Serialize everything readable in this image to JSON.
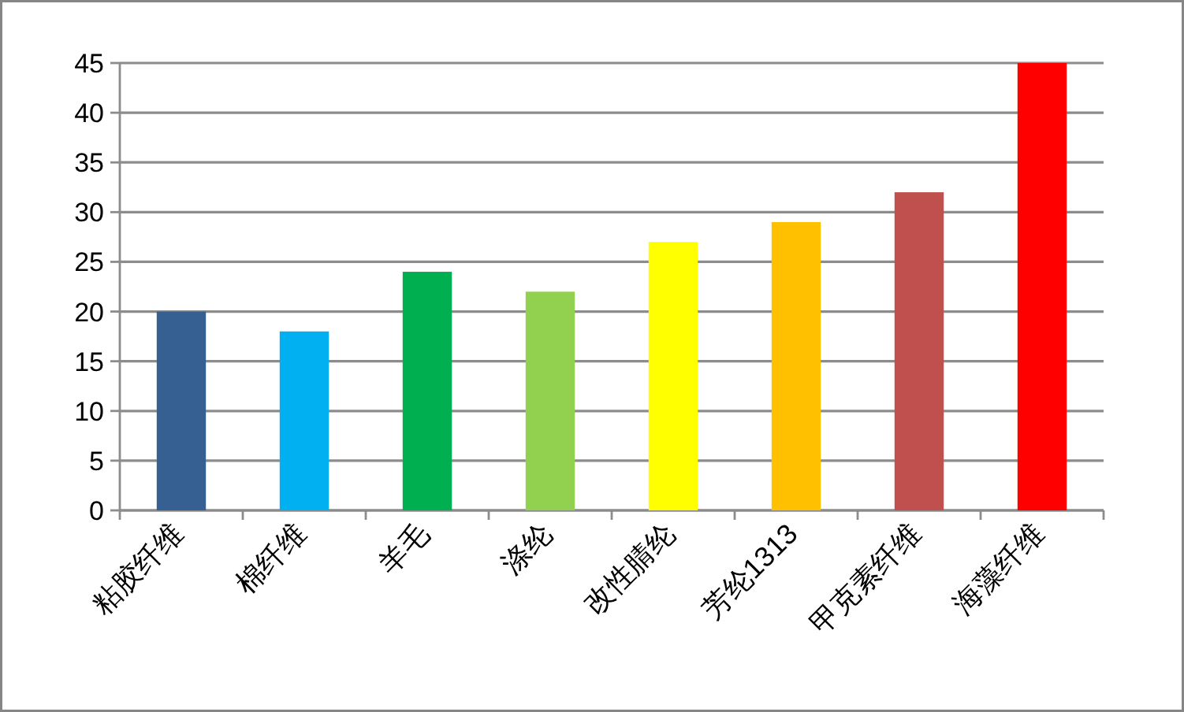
{
  "chart_data": {
    "type": "bar",
    "categories": [
      "粘胶纤维",
      "棉纤维",
      "羊毛",
      "涤纶",
      "改性腈纶",
      "芳纶1313",
      "甲克素纤维",
      "海藻纤维"
    ],
    "values": [
      20,
      18,
      24,
      22,
      27,
      29,
      32,
      45
    ],
    "colors": [
      "#376092",
      "#00b0f0",
      "#00b050",
      "#92d050",
      "#ffff00",
      "#ffc000",
      "#c0504d",
      "#ff0000"
    ],
    "ylim": [
      0,
      45
    ],
    "yticks": [
      0,
      5,
      10,
      15,
      20,
      25,
      30,
      35,
      40,
      45
    ],
    "grid": "y"
  }
}
